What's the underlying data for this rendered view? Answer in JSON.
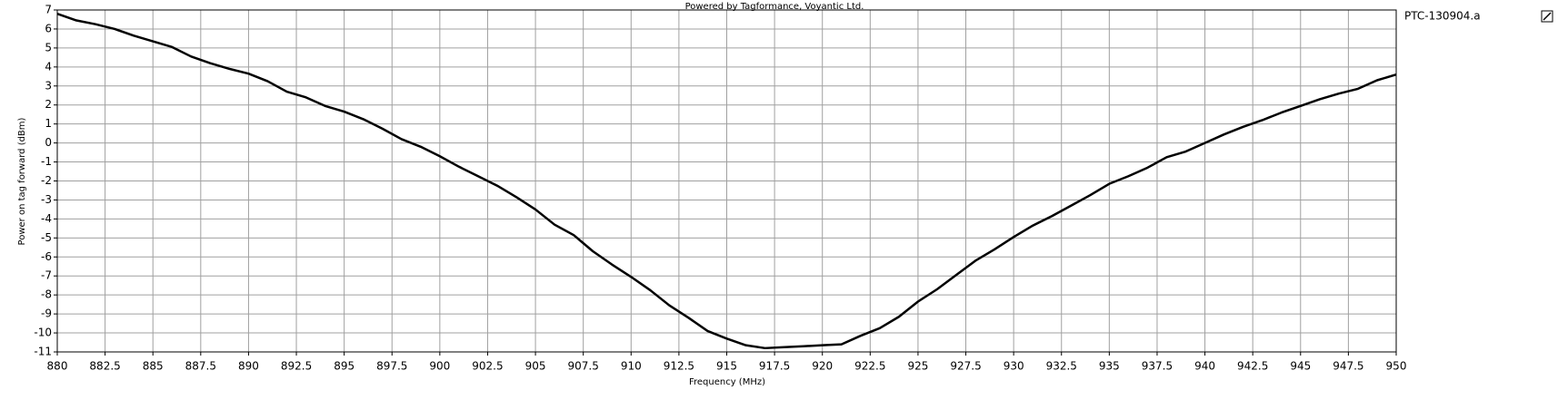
{
  "chart_data": {
    "type": "line",
    "title": "Powered by Tagformance, Voyantic Ltd.",
    "x_label": "Frequency (MHz)",
    "y_label": "Power on tag forward (dBm)",
    "x": [
      880,
      881,
      882,
      883,
      884,
      885,
      886,
      887,
      888,
      889,
      890,
      891,
      892,
      893,
      894,
      895,
      896,
      897,
      898,
      899,
      900,
      901,
      902,
      903,
      904,
      905,
      906,
      907,
      908,
      909,
      910,
      911,
      912,
      913,
      914,
      915,
      916,
      917,
      918,
      919,
      920,
      921,
      922,
      923,
      924,
      925,
      926,
      927,
      928,
      929,
      930,
      931,
      932,
      933,
      934,
      935,
      936,
      937,
      938,
      939,
      940,
      941,
      942,
      943,
      944,
      945,
      946,
      947,
      948,
      949,
      950
    ],
    "series": [
      {
        "name": "PTC-130904.a",
        "color": "#000000",
        "values": [
          6.8,
          6.45,
          6.25,
          6.0,
          5.65,
          5.35,
          5.05,
          4.55,
          4.2,
          3.9,
          3.65,
          3.25,
          2.7,
          2.4,
          1.95,
          1.65,
          1.25,
          0.75,
          0.2,
          -0.2,
          -0.7,
          -1.25,
          -1.75,
          -2.25,
          -2.85,
          -3.5,
          -4.3,
          -4.85,
          -5.7,
          -6.4,
          -7.05,
          -7.75,
          -8.55,
          -9.2,
          -9.9,
          -10.3,
          -10.65,
          -10.8,
          -10.75,
          -10.7,
          -10.65,
          -10.6,
          -10.15,
          -9.75,
          -9.15,
          -8.35,
          -7.7,
          -6.95,
          -6.2,
          -5.6,
          -4.95,
          -4.35,
          -3.85,
          -3.3,
          -2.75,
          -2.15,
          -1.75,
          -1.3,
          -0.75,
          -0.45,
          0,
          0.45,
          0.85,
          1.2,
          1.6,
          1.95,
          2.3,
          2.6,
          2.85,
          3.3,
          3.6
        ]
      }
    ],
    "xlim": [
      880,
      950
    ],
    "xticks": [
      880,
      882.5,
      885,
      887.5,
      890,
      892.5,
      895,
      897.5,
      900,
      902.5,
      905,
      907.5,
      910,
      912.5,
      915,
      917.5,
      920,
      922.5,
      925,
      927.5,
      930,
      932.5,
      935,
      937.5,
      940,
      942.5,
      945,
      947.5,
      950
    ],
    "ylim": [
      -11,
      7
    ],
    "yticks": [
      -11,
      -10,
      -9,
      -8,
      -7,
      -6,
      -5,
      -4,
      -3,
      -2,
      -1,
      0,
      1,
      2,
      3,
      4,
      5,
      6,
      7
    ],
    "grid": true
  }
}
